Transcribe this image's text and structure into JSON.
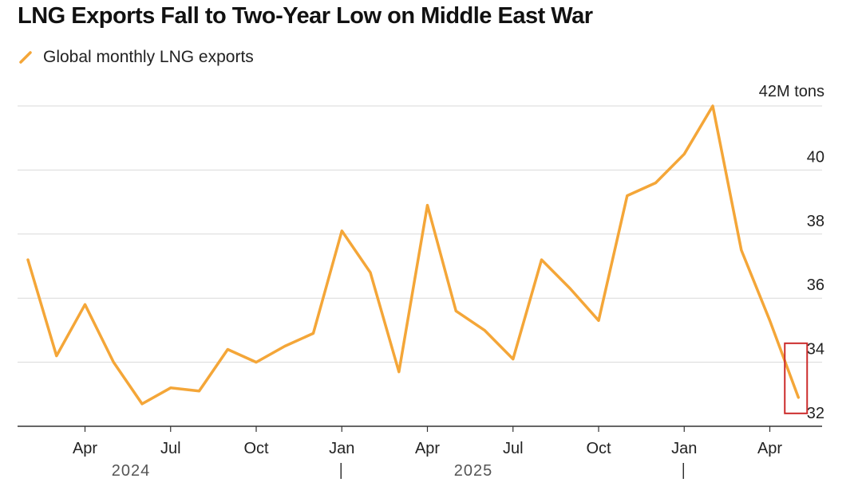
{
  "title": "LNG Exports Fall to Two-Year Low on Middle East War",
  "colors": {
    "series": "#f4a638",
    "grid": "#d9d9d9",
    "axis": "#333333",
    "highlight": "#cc2b2b"
  },
  "chart_data": {
    "type": "line",
    "title": "LNG Exports Fall to Two-Year Low on Middle East War",
    "unit": "42M tons",
    "legend": "top-left",
    "grid": true,
    "ylim": [
      32,
      42
    ],
    "yticks": [
      32,
      34,
      36,
      38,
      40,
      42
    ],
    "y_tick_labels": [
      "32",
      "34",
      "36",
      "38",
      "40",
      "42M tons"
    ],
    "x_tick_labels": [
      {
        "month": "2024-04",
        "label": "Apr"
      },
      {
        "month": "2024-07",
        "label": "Jul"
      },
      {
        "month": "2024-10",
        "label": "Oct"
      },
      {
        "month": "2025-01",
        "label": "Jan"
      },
      {
        "month": "2025-04",
        "label": "Apr"
      },
      {
        "month": "2025-07",
        "label": "Jul"
      },
      {
        "month": "2025-10",
        "label": "Oct"
      },
      {
        "month": "2026-01",
        "label": "Jan"
      },
      {
        "month": "2026-04",
        "label": "Apr"
      }
    ],
    "year_labels": [
      {
        "month": "2024-06",
        "label": "2024"
      },
      {
        "month": "2025-06",
        "label": "2025"
      }
    ],
    "year_dividers": [
      "2025-01",
      "2026-01"
    ],
    "series": [
      {
        "name": "Global monthly LNG exports",
        "x": [
          "2024-02",
          "2024-03",
          "2024-04",
          "2024-05",
          "2024-06",
          "2024-07",
          "2024-08",
          "2024-09",
          "2024-10",
          "2024-11",
          "2024-12",
          "2025-01",
          "2025-02",
          "2025-03",
          "2025-04",
          "2025-05",
          "2025-06",
          "2025-07",
          "2025-08",
          "2025-09",
          "2025-10",
          "2025-11",
          "2025-12",
          "2026-01",
          "2026-02",
          "2026-03",
          "2026-04",
          "2026-05"
        ],
        "values": [
          37.2,
          34.2,
          35.8,
          34.0,
          32.7,
          33.2,
          33.1,
          34.4,
          34.0,
          34.5,
          34.9,
          38.1,
          36.8,
          33.7,
          38.9,
          35.6,
          35.0,
          34.1,
          37.2,
          36.3,
          35.3,
          39.2,
          39.6,
          40.5,
          42.0,
          37.5,
          35.3,
          32.9
        ]
      }
    ],
    "highlight": {
      "month": "2026-05",
      "value": 32.9
    }
  }
}
